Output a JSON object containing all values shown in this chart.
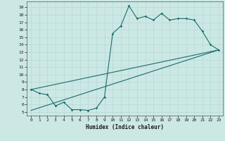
{
  "xlabel": "Humidex (Indice chaleur)",
  "ylabel": "",
  "xlim": [
    -0.5,
    23.5
  ],
  "ylim": [
    4.5,
    19.8
  ],
  "yticks": [
    5,
    6,
    7,
    8,
    9,
    10,
    11,
    12,
    13,
    14,
    15,
    16,
    17,
    18,
    19
  ],
  "xticks": [
    0,
    1,
    2,
    3,
    4,
    5,
    6,
    7,
    8,
    9,
    10,
    11,
    12,
    13,
    14,
    15,
    16,
    17,
    18,
    19,
    20,
    21,
    22,
    23
  ],
  "bg_color": "#cce8e5",
  "line_color": "#1a6b6b",
  "grid_color": "#b8dbd8",
  "curve1_x": [
    0,
    1,
    2,
    3,
    4,
    5,
    6,
    7,
    8,
    9,
    10,
    11,
    12,
    13,
    14,
    15,
    16,
    17,
    18,
    19,
    20,
    21,
    22,
    23
  ],
  "curve1_y": [
    8.0,
    7.5,
    7.3,
    5.8,
    6.3,
    5.3,
    5.3,
    5.2,
    5.5,
    7.0,
    15.5,
    16.5,
    19.2,
    17.5,
    17.8,
    17.3,
    18.2,
    17.3,
    17.5,
    17.5,
    17.3,
    15.8,
    14.0,
    13.3
  ],
  "line1_x": [
    0,
    23
  ],
  "line1_y": [
    8.0,
    13.3
  ],
  "line2_x": [
    0,
    23
  ],
  "line2_y": [
    5.2,
    13.3
  ]
}
